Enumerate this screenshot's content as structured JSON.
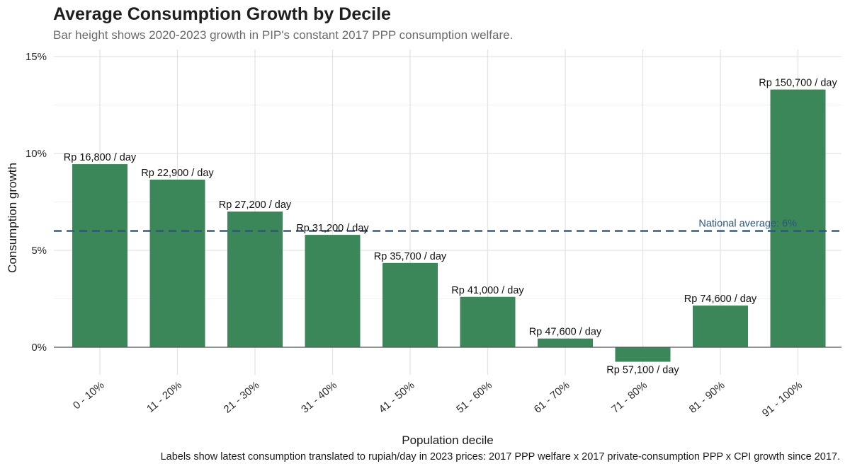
{
  "title": "Average Consumption Growth by Decile",
  "subtitle": "Bar height shows 2020-2023 growth in PIP's constant 2017 PPP consumption welfare.",
  "caption": "Labels show latest consumption translated to rupiah/day in 2023 prices: 2017 PPP welfare x 2017 private-consumption PPP x CPI growth since 2017.",
  "colors": {
    "bar": "#3c875a",
    "reference": "#2b5580",
    "grid": "#e3e3e3",
    "zero": "#555555"
  },
  "chart_data": {
    "type": "bar",
    "title": "Average Consumption Growth by Decile",
    "subtitle": "Bar height shows 2020-2023 growth in PIP's constant 2017 PPP consumption welfare.",
    "xlabel": "Population decile",
    "ylabel": "Consumption growth",
    "ylim": [
      -1.5,
      15.3
    ],
    "yticks": [
      0,
      5,
      10,
      15
    ],
    "ytick_labels": [
      "0%",
      "5%",
      "10%",
      "15%"
    ],
    "grid": true,
    "categories": [
      "0 - 10%",
      "11 - 20%",
      "21 - 30%",
      "31 - 40%",
      "41 - 50%",
      "51 - 60%",
      "61 - 70%",
      "71 - 80%",
      "81 - 90%",
      "91 - 100%"
    ],
    "values": [
      9.45,
      8.65,
      7.0,
      5.8,
      4.35,
      2.6,
      0.45,
      -0.75,
      2.15,
      13.3
    ],
    "labels": [
      "Rp 16,800 / day",
      "Rp 22,900 / day",
      "Rp 27,200 / day",
      "Rp 31,200 / day",
      "Rp 35,700 / day",
      "Rp 41,000 / day",
      "Rp 47,600 / day",
      "Rp 57,100 / day",
      "Rp 74,600 / day",
      "Rp 150,700 / day"
    ],
    "reference_line": {
      "value": 6,
      "label": "National average: 6%",
      "style": "dashed"
    }
  }
}
